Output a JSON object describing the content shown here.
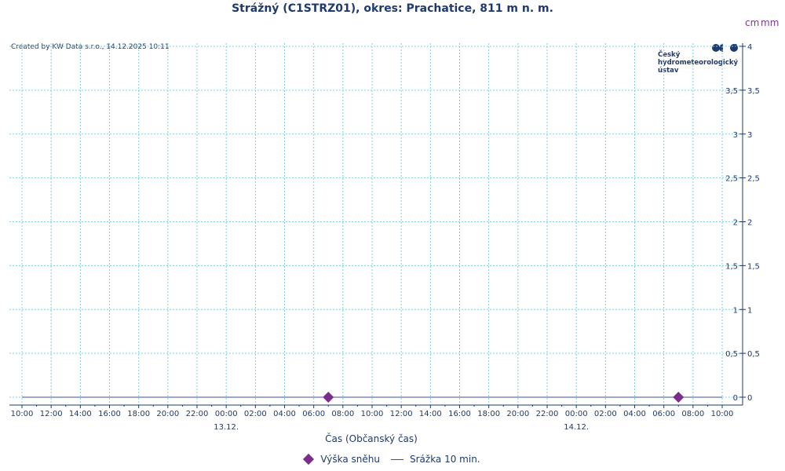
{
  "title": "Strážný (C1STRZ01), okres: Prachatice, 811 m n. m.",
  "unit_left": "cm",
  "unit_right": "mm",
  "credit": "Created by KW Data s.r.o., 14.12.2025 10:11",
  "logo": {
    "text": "Český\nhydrometeorologický\nústav",
    "icon": "chmu-logo-icon"
  },
  "colors": {
    "text": "#1f3a6e",
    "grid": "#7fd0e0",
    "snow": "#7b2d8b",
    "precip": "#3b4ea0"
  },
  "chart_data": {
    "type": "line",
    "title": "Strážný (C1STRZ01), okres: Prachatice, 811 m n. m.",
    "xlabel": "Čas (Občanský čas)",
    "ylabel_left": "cm",
    "ylabel_right": "mm",
    "x_start_hour": 10,
    "x_end_hour": 58,
    "x_ticks": [
      "10:00",
      "12:00",
      "14:00",
      "16:00",
      "18:00",
      "20:00",
      "22:00",
      "00:00",
      "02:00",
      "04:00",
      "06:00",
      "08:00",
      "10:00",
      "12:00",
      "14:00",
      "16:00",
      "18:00",
      "20:00",
      "22:00",
      "00:00",
      "02:00",
      "04:00",
      "06:00",
      "08:00",
      "10:00"
    ],
    "date_labels": [
      {
        "label": "13.12.",
        "hour": 24
      },
      {
        "label": "14.12.",
        "hour": 48
      }
    ],
    "ylim": [
      0,
      4
    ],
    "y_ticks": [
      "0",
      "0,5",
      "1",
      "1,5",
      "2",
      "2,5",
      "3",
      "3,5",
      "4"
    ],
    "grid": true,
    "legend_position": "bottom",
    "series": [
      {
        "name": "Výška sněhu",
        "kind": "marker",
        "points": [
          {
            "hour": 31,
            "value": 0
          },
          {
            "hour": 55,
            "value": 0
          }
        ]
      },
      {
        "name": "Srážka 10 min.",
        "kind": "line",
        "points": [
          {
            "hour": 10,
            "value": 0
          },
          {
            "hour": 58,
            "value": 0
          }
        ]
      }
    ]
  }
}
